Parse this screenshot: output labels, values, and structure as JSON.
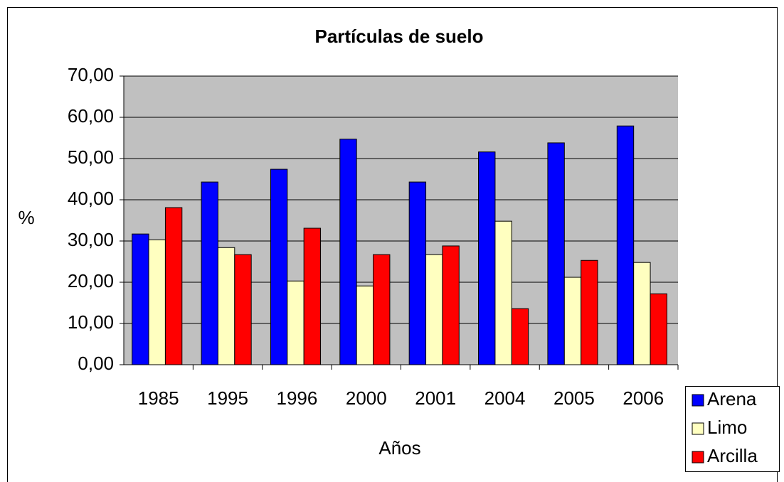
{
  "chart_data": {
    "type": "bar",
    "title": "Partículas de suelo",
    "x_label": "Años",
    "y_label": "%",
    "categories": [
      "1985",
      "1995",
      "1996",
      "2000",
      "2001",
      "2004",
      "2005",
      "2006"
    ],
    "series": [
      {
        "name": "Arena",
        "color": "#0000ff",
        "values": [
          31.7,
          44.3,
          47.4,
          54.7,
          44.3,
          51.6,
          53.8,
          57.9
        ]
      },
      {
        "name": "Limo",
        "color": "#ffffc0",
        "values": [
          30.3,
          28.4,
          20.3,
          19.1,
          26.7,
          34.8,
          21.2,
          24.8
        ]
      },
      {
        "name": "Arcilla",
        "color": "#ff0000",
        "values": [
          38.1,
          26.7,
          33.1,
          26.7,
          28.8,
          13.6,
          25.3,
          17.2
        ]
      }
    ],
    "ylim": [
      0,
      70
    ],
    "yticks": [
      {
        "value": 0,
        "label": "0,00"
      },
      {
        "value": 10,
        "label": "10,00"
      },
      {
        "value": 20,
        "label": "20,00"
      },
      {
        "value": 30,
        "label": "30,00"
      },
      {
        "value": 40,
        "label": "40,00"
      },
      {
        "value": 50,
        "label": "50,00"
      },
      {
        "value": 60,
        "label": "60,00"
      },
      {
        "value": 70,
        "label": "70,00"
      }
    ],
    "grid": true,
    "plot_background": "#c0c0c0",
    "legend": "bottom-right"
  }
}
